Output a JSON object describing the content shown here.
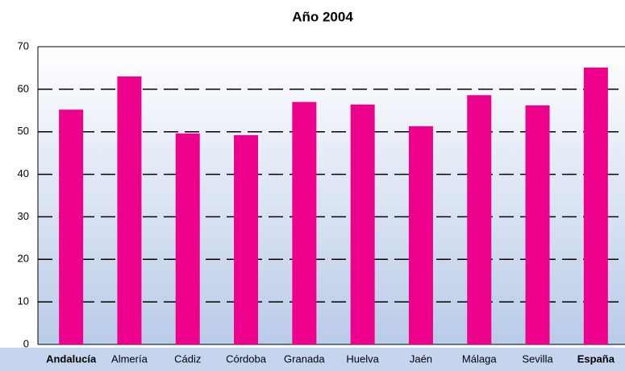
{
  "chart_data": {
    "type": "bar",
    "title": "Año 2004",
    "categories": [
      "Andalucía",
      "Almería",
      "Cádiz",
      "Córdoba",
      "Granada",
      "Huelva",
      "Jaén",
      "Málaga",
      "Sevilla",
      "España"
    ],
    "values": [
      55.2,
      63,
      49.6,
      49.2,
      57,
      56.4,
      51.3,
      58.6,
      56.2,
      65.1
    ],
    "color": "#ec008c",
    "ylim": [
      0,
      70
    ],
    "yticks": [
      0,
      10,
      20,
      30,
      40,
      50,
      60,
      70
    ],
    "grid": true
  }
}
